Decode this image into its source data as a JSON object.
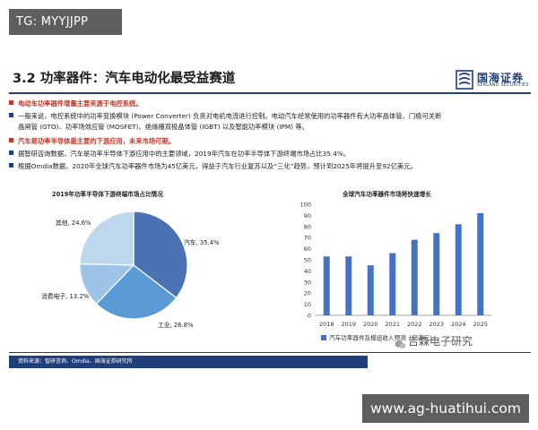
{
  "watermark_top": "TG: MYYJJPP",
  "watermark_bottom": "www.ag-huatihui.com",
  "wechat_handle": "吉森电子研究",
  "title": "3.2 功率器件：汽车电动化最受益赛道",
  "logo": {
    "cn": "国海证券",
    "en": "SEALAND SECURITIES"
  },
  "colors": {
    "navy": "#1f3f7a",
    "red": "#c0392b",
    "pie": [
      "#4a72b5",
      "#5b9bd5",
      "#9dc3e6",
      "#bdd7ee"
    ],
    "bar": "#4472c4"
  },
  "bullets": [
    {
      "style": "red",
      "text": "电动车功率器件增量主要来源于电控系统。"
    },
    {
      "style": "blue",
      "text": "一般来说，电控系统中的功率变换模块 (Power Converter) 负责对电机电流进行控制。电动汽车经常使用的功率器件有大功率晶体管、门极可关断",
      "text2": "晶闸管 (GTO)、功率场效应管 (MOSFET)、绝缘栅双极晶体管 (IGBT) 以及智能功率模块 (IPM) 等。"
    },
    {
      "style": "red",
      "text": "汽车是功率半导体最主要的下游应用，未来市场可期。"
    },
    {
      "style": "blue",
      "text": "据智研咨询数据，汽车是功率半导体下游应用中的主要领域，2019年汽车在功率半导体下游终端市场占比35.4%。"
    },
    {
      "style": "blue",
      "text": "根据Omdia数据，2020年全球汽车功率器件市场为45亿美元，得益于汽车行业复苏以及“三化”趋势，预计到2025年将提升至92亿美元。"
    }
  ],
  "chart_data": [
    {
      "type": "pie",
      "title": "2019年功率半导体下游终端市场占比情况",
      "slices": [
        {
          "name": "汽车",
          "value": 35.4,
          "label": "汽车, 35.4%"
        },
        {
          "name": "工业",
          "value": 26.8,
          "label": "工业, 26.8%"
        },
        {
          "name": "消费电子",
          "value": 13.2,
          "label": "消费电子, 13.2%"
        },
        {
          "name": "其他",
          "value": 24.6,
          "label": "其他, 24.6%"
        }
      ]
    },
    {
      "type": "bar",
      "title": "全球汽车功率器件市场将快速增长",
      "categories": [
        "2018",
        "2019",
        "2020",
        "2021",
        "2022",
        "2023",
        "2024",
        "2025"
      ],
      "values": [
        53,
        53,
        45,
        56,
        68,
        74,
        82,
        92
      ],
      "ylim": [
        0,
        100
      ],
      "yticks": [
        0,
        10,
        20,
        30,
        40,
        50,
        60,
        70,
        80,
        90,
        100
      ],
      "legend": "汽车功率器件及模组收入预测（亿美元）",
      "legend_position": "bottom",
      "grid": false
    }
  ],
  "source": "资料来源：智研咨询、Omdia、国海证券研究所"
}
